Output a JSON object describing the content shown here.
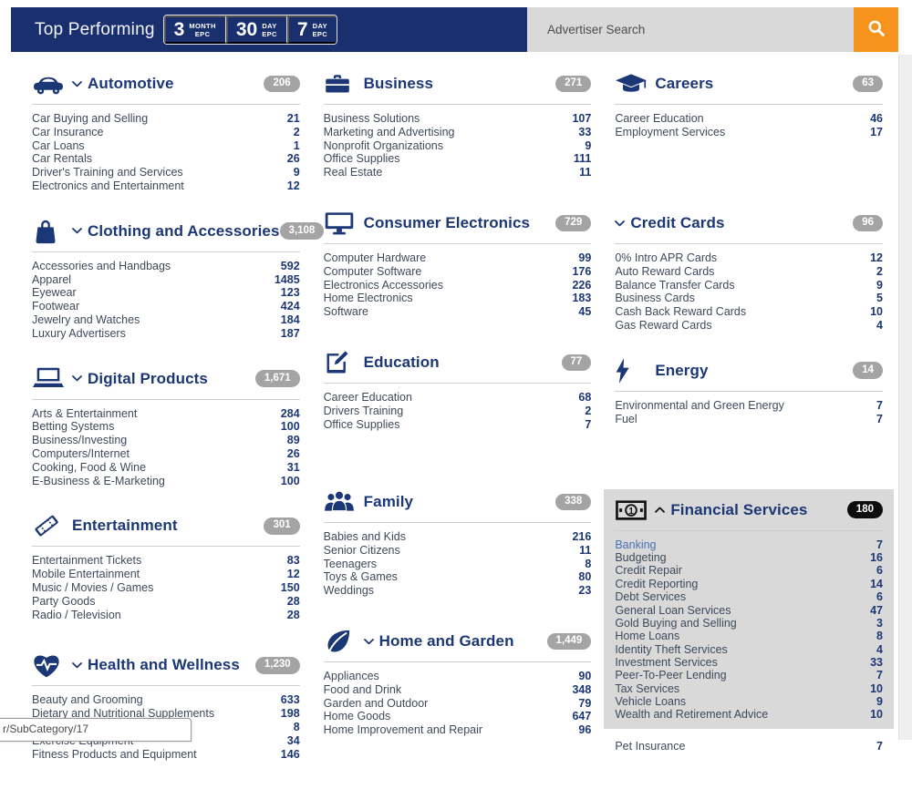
{
  "theme": {
    "bar": "#1a2f6e",
    "navy": "#1c3775",
    "orange": "#f7941e",
    "badge": "#a4a4a4",
    "badgeblack": "#0d0d0d",
    "cardbg": "#d9d9d9",
    "link": "#4a6fb5",
    "label": "#3e4a5b"
  },
  "header": {
    "title": "Top Performing",
    "epc_buttons": [
      {
        "number": "3",
        "line1": "MONTH",
        "line2": "EPC"
      },
      {
        "number": "30",
        "line1": "DAY",
        "line2": "EPC"
      },
      {
        "number": "7",
        "line1": "DAY",
        "line2": "EPC"
      }
    ],
    "search": {
      "placeholder": "Advertiser Search",
      "button_icon": "search-icon"
    }
  },
  "statusbar": {
    "text": "r/SubCategory/17"
  },
  "columns": [
    {
      "categories": [
        {
          "id": "automotive",
          "icon": "car-icon",
          "chevron": "down",
          "title": "Automotive",
          "badge": "206",
          "expanded": false,
          "items": [
            {
              "label": "Car Buying and Selling",
              "value": "21"
            },
            {
              "label": "Car Insurance",
              "value": "2"
            },
            {
              "label": "Car Loans",
              "value": "1"
            },
            {
              "label": "Car Rentals",
              "value": "26"
            },
            {
              "label": "Driver's Training and Services",
              "value": "9"
            },
            {
              "label": "Electronics and Entertainment",
              "value": "12"
            }
          ]
        },
        {
          "id": "clothing-and-accessories",
          "icon": "shopping-bag-icon",
          "chevron": "down",
          "title": "Clothing and Accessories",
          "badge": "3,108",
          "expanded": false,
          "items": [
            {
              "label": "Accessories and Handbags",
              "value": "592"
            },
            {
              "label": "Apparel",
              "value": "1485"
            },
            {
              "label": "Eyewear",
              "value": "123"
            },
            {
              "label": "Footwear",
              "value": "424"
            },
            {
              "label": "Jewelry and Watches",
              "value": "184"
            },
            {
              "label": "Luxury Advertisers",
              "value": "187"
            }
          ]
        },
        {
          "id": "digital-products",
          "icon": "laptop-icon",
          "chevron": "down",
          "title": "Digital Products",
          "badge": "1,671",
          "expanded": false,
          "items": [
            {
              "label": "Arts & Entertainment",
              "value": "284"
            },
            {
              "label": "Betting Systems",
              "value": "100"
            },
            {
              "label": "Business/Investing",
              "value": "89"
            },
            {
              "label": "Computers/Internet",
              "value": "26"
            },
            {
              "label": "Cooking, Food & Wine",
              "value": "31"
            },
            {
              "label": "E-Business & E-Marketing",
              "value": "100"
            }
          ]
        },
        {
          "id": "entertainment",
          "icon": "ticket-icon",
          "chevron": null,
          "title": "Entertainment",
          "badge": "301",
          "expanded": false,
          "items": [
            {
              "label": "Entertainment Tickets",
              "value": "83"
            },
            {
              "label": "Mobile Entertainment",
              "value": "12"
            },
            {
              "label": "Music / Movies / Games",
              "value": "150"
            },
            {
              "label": "Party Goods",
              "value": "28"
            },
            {
              "label": "Radio / Television",
              "value": "28"
            }
          ]
        },
        {
          "id": "health-and-wellness",
          "icon": "heart-pulse-icon",
          "chevron": "down",
          "title": "Health and Wellness",
          "badge": "1,230",
          "expanded": false,
          "items": [
            {
              "label": "Beauty and Grooming",
              "value": "633"
            },
            {
              "label": "Dietary and Nutritional Supplements",
              "value": "198"
            },
            {
              "label": "Environmental",
              "value": "8"
            },
            {
              "label": "Exercise Equipment",
              "value": "34"
            },
            {
              "label": "Fitness Products and Equipment",
              "value": "146"
            }
          ]
        }
      ]
    },
    {
      "categories": [
        {
          "id": "business",
          "icon": "briefcase-icon",
          "chevron": null,
          "title": "Business",
          "badge": "271",
          "expanded": false,
          "items": [
            {
              "label": "Business Solutions",
              "value": "107"
            },
            {
              "label": "Marketing and Advertising",
              "value": "33"
            },
            {
              "label": "Nonprofit Organizations",
              "value": "9"
            },
            {
              "label": "Office Supplies",
              "value": "111"
            },
            {
              "label": "Real Estate",
              "value": "11"
            }
          ]
        },
        {
          "id": "consumer-electronics",
          "icon": "monitor-icon",
          "chevron": null,
          "title": "Consumer Electronics",
          "badge": "729",
          "expanded": false,
          "items": [
            {
              "label": "Computer Hardware",
              "value": "99"
            },
            {
              "label": "Computer Software",
              "value": "176"
            },
            {
              "label": "Electronics Accessories",
              "value": "226"
            },
            {
              "label": "Home Electronics",
              "value": "183"
            },
            {
              "label": "Software",
              "value": "45"
            }
          ]
        },
        {
          "id": "education",
          "icon": "edit-icon",
          "chevron": null,
          "title": "Education",
          "badge": "77",
          "expanded": false,
          "items": [
            {
              "label": "Career Education",
              "value": "68"
            },
            {
              "label": "Drivers Training",
              "value": "2"
            },
            {
              "label": "Office Supplies",
              "value": "7"
            }
          ]
        },
        {
          "id": "family",
          "icon": "family-icon",
          "chevron": null,
          "title": "Family",
          "badge": "338",
          "expanded": false,
          "items": [
            {
              "label": "Babies and Kids",
              "value": "216"
            },
            {
              "label": "Senior Citizens",
              "value": "11"
            },
            {
              "label": "Teenagers",
              "value": "8"
            },
            {
              "label": "Toys & Games",
              "value": "80"
            },
            {
              "label": "Weddings",
              "value": "23"
            }
          ]
        },
        {
          "id": "home-and-garden",
          "icon": "leaf-icon",
          "chevron": "down",
          "title": "Home and Garden",
          "badge": "1,449",
          "expanded": false,
          "items": [
            {
              "label": "Appliances",
              "value": "90"
            },
            {
              "label": "Food and Drink",
              "value": "348"
            },
            {
              "label": "Garden and Outdoor",
              "value": "79"
            },
            {
              "label": "Home Goods",
              "value": "647"
            },
            {
              "label": "Home Improvement and Repair",
              "value": "96"
            }
          ]
        }
      ]
    },
    {
      "categories": [
        {
          "id": "careers",
          "icon": "graduation-cap-icon",
          "chevron": null,
          "title": "Careers",
          "badge": "63",
          "expanded": false,
          "items": [
            {
              "label": "Career Education",
              "value": "46"
            },
            {
              "label": "Employment Services",
              "value": "17"
            }
          ]
        },
        {
          "id": "credit-cards",
          "icon": null,
          "chevron": "down",
          "title": "Credit Cards",
          "badge": "96",
          "expanded": false,
          "items": [
            {
              "label": "0% Intro APR Cards",
              "value": "12"
            },
            {
              "label": "Auto Reward Cards",
              "value": "2"
            },
            {
              "label": "Balance Transfer Cards",
              "value": "9"
            },
            {
              "label": "Business Cards",
              "value": "5"
            },
            {
              "label": "Cash Back Reward Cards",
              "value": "10"
            },
            {
              "label": "Gas Reward Cards",
              "value": "4"
            }
          ]
        },
        {
          "id": "energy",
          "icon": "bolt-icon",
          "chevron": null,
          "title": "Energy",
          "badge": "14",
          "expanded": false,
          "items": [
            {
              "label": "Environmental and Green Energy",
              "value": "7"
            },
            {
              "label": "Fuel",
              "value": "7"
            }
          ]
        },
        {
          "id": "financial-services",
          "icon": "money-icon",
          "chevron": "up",
          "title": "Financial Services",
          "badge": "180",
          "expanded": true,
          "items": [
            {
              "label": "Banking",
              "value": "7",
              "highlighted": true
            },
            {
              "label": "Budgeting",
              "value": "16"
            },
            {
              "label": "Credit Repair",
              "value": "6"
            },
            {
              "label": "Credit Reporting",
              "value": "14"
            },
            {
              "label": "Debt Services",
              "value": "6"
            },
            {
              "label": "General Loan Services",
              "value": "47"
            },
            {
              "label": "Gold Buying and Selling",
              "value": "3"
            },
            {
              "label": "Home Loans",
              "value": "8"
            },
            {
              "label": "Identity Theft Services",
              "value": "4"
            },
            {
              "label": "Investment Services",
              "value": "33"
            },
            {
              "label": "Peer-To-Peer Lending",
              "value": "7"
            },
            {
              "label": "Tax Services",
              "value": "10"
            },
            {
              "label": "Vehicle Loans",
              "value": "9"
            },
            {
              "label": "Wealth and Retirement Advice",
              "value": "10"
            }
          ]
        },
        {
          "id": "insurance-partial",
          "icon": null,
          "chevron": null,
          "title": null,
          "badge": null,
          "expanded": false,
          "items": [
            {
              "label": "Pet Insurance",
              "value": "7"
            }
          ]
        }
      ]
    }
  ]
}
